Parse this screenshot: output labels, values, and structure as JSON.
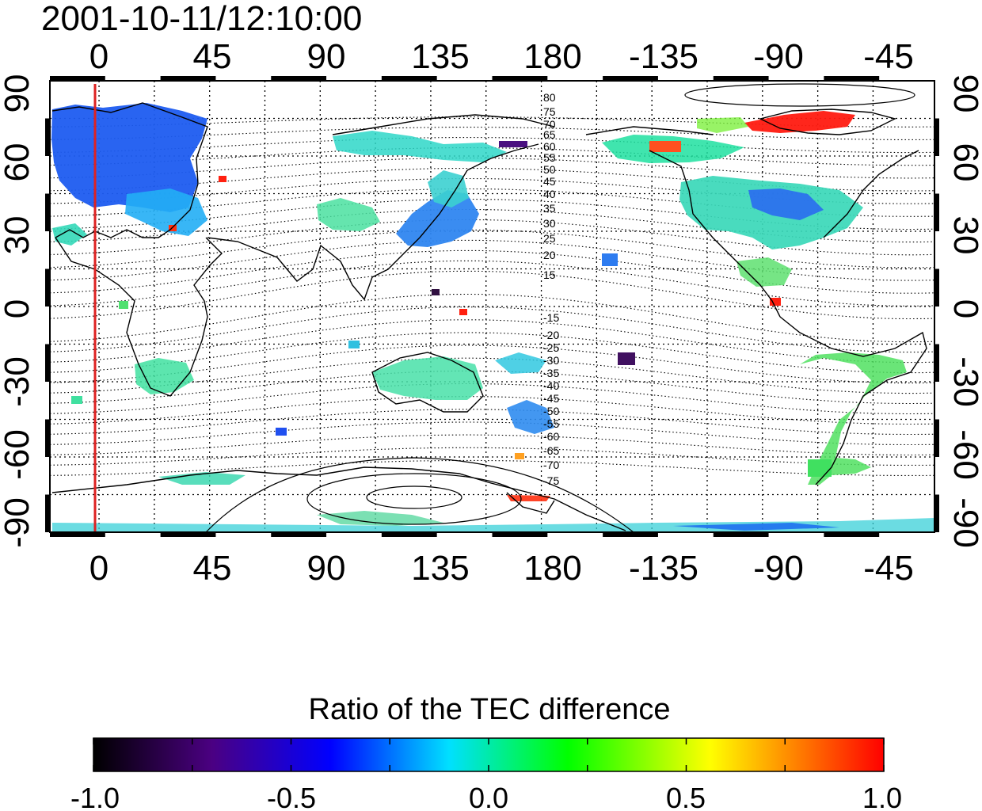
{
  "timestamp": "2001-10-11/12:10:00",
  "top_lon_ticks": [
    "0",
    "45",
    "90",
    "135",
    "180",
    "-135",
    "-90",
    "-45"
  ],
  "bottom_lon_ticks": [
    "0",
    "45",
    "90",
    "135",
    "180",
    "-135",
    "-90",
    "-45"
  ],
  "left_lat_ticks": [
    "90",
    "60",
    "30",
    "0",
    "-30",
    "-60",
    "-90"
  ],
  "right_lat_ticks": [
    "90",
    "60",
    "30",
    "0",
    "-30",
    "-60",
    "-90"
  ],
  "contour_labels_north": [
    "80",
    "75",
    "70",
    "65",
    "60",
    "55",
    "50",
    "45",
    "40",
    "35",
    "30",
    "25",
    "20",
    "15"
  ],
  "contour_labels_south": [
    "-15",
    "-20",
    "-25",
    "-30",
    "-35",
    "-40",
    "-45",
    "-50",
    "-55",
    "-60",
    "-65",
    "-70",
    "-75"
  ],
  "colorbar": {
    "title": "Ratio of the TEC difference",
    "tick_labels": [
      "-1.0",
      "-0.5",
      "0.0",
      "0.5",
      "1.0"
    ],
    "min": -1.0,
    "max": 1.0,
    "colormap": "rainbow",
    "stops": [
      "#000000",
      "#4b0082",
      "#0000ff",
      "#00ffff",
      "#00ff00",
      "#ffff00",
      "#ff0000"
    ]
  },
  "map": {
    "lon_range": [
      -20,
      340
    ],
    "lat_range": [
      -90,
      90
    ],
    "subsolar_meridian_color": "#dd2222",
    "grid": "dotted"
  }
}
